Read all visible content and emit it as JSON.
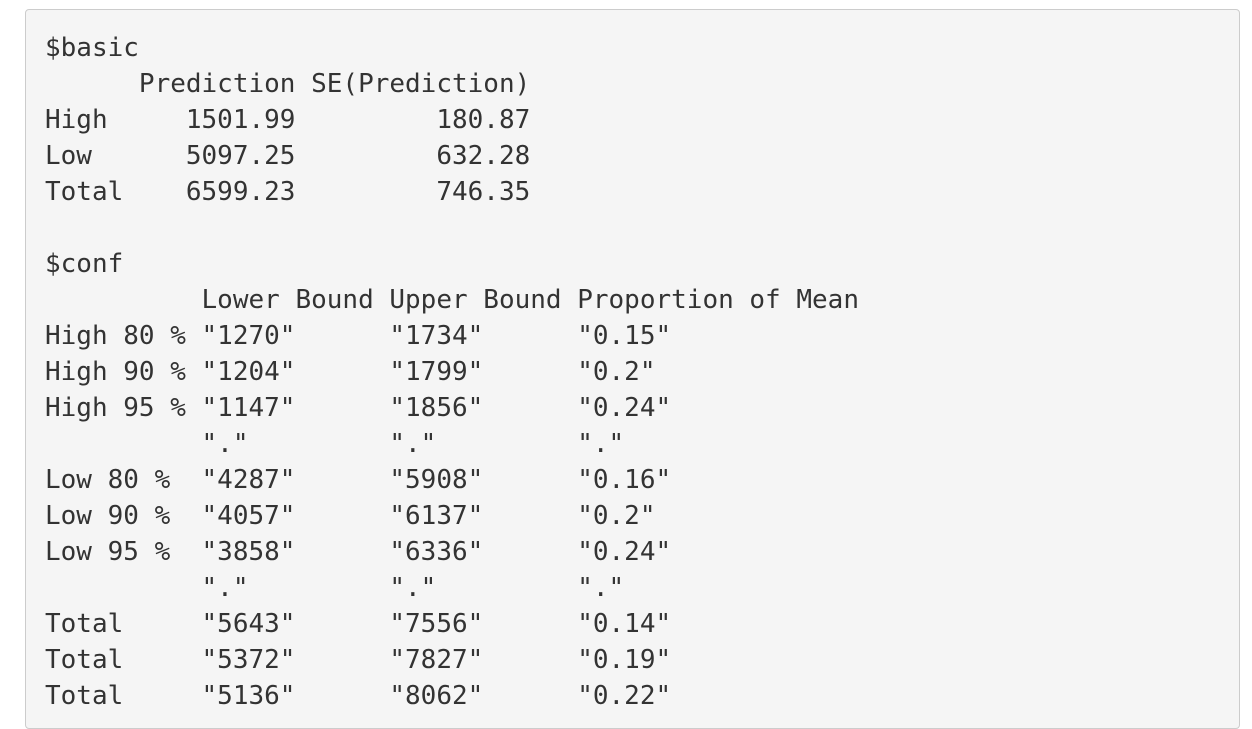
{
  "output": {
    "lines": [
      "$basic",
      "      Prediction SE(Prediction)",
      "High     1501.99         180.87",
      "Low      5097.25         632.28",
      "Total    6599.23         746.35",
      "",
      "$conf",
      "          Lower Bound Upper Bound Proportion of Mean",
      "High 80 % \"1270\"      \"1734\"      \"0.15\"",
      "High 90 % \"1204\"      \"1799\"      \"0.2\"",
      "High 95 % \"1147\"      \"1856\"      \"0.24\"",
      "          \".\"         \".\"         \".\"",
      "Low 80 %  \"4287\"      \"5908\"      \"0.16\"",
      "Low 90 %  \"4057\"      \"6137\"      \"0.2\"",
      "Low 95 %  \"3858\"      \"6336\"      \"0.24\"",
      "          \".\"         \".\"         \".\"",
      "Total     \"5643\"      \"7556\"      \"0.14\"",
      "Total     \"5372\"      \"7827\"      \"0.19\"",
      "Total     \"5136\"      \"8062\"      \"0.22\""
    ]
  }
}
